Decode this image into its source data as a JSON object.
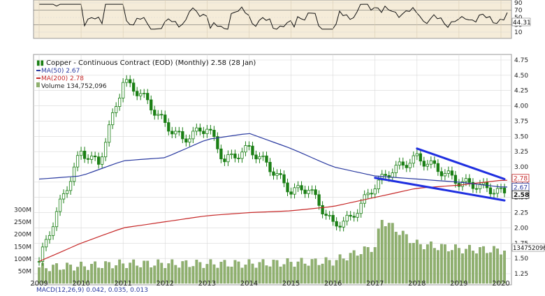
{
  "header": {
    "symbol_icon": "candlestick-icon",
    "title": "Copper - Continuous Contract (EOD) (Monthly) 2.58 (28 Jan)"
  },
  "legend": {
    "ma50": "MA(50) 2.67",
    "ma200": "MA(200) 2.78",
    "volume": "Volume 134,752,096"
  },
  "rsi_panel": {
    "y_ticks": [
      "90",
      "70",
      "50",
      "30",
      "10"
    ],
    "current_label": "44.31"
  },
  "price_axis": {
    "y_ticks": [
      "4.75",
      "4.50",
      "4.25",
      "4.00",
      "3.75",
      "3.50",
      "3.25",
      "3.00",
      "2.75",
      "2.50",
      "2.25",
      "2.00",
      "1.75",
      "1.50",
      "1.25"
    ],
    "price_labels": [
      "2.78",
      "2.67",
      "2.58"
    ],
    "volume_label": "134752096"
  },
  "volume_axis": {
    "ticks": [
      "300M",
      "250M",
      "200M",
      "150M",
      "100M",
      "50M"
    ]
  },
  "x_axis": {
    "years": [
      "2009",
      "2010",
      "2011",
      "2012",
      "2013",
      "2014",
      "2015",
      "2016",
      "2017",
      "2018",
      "2019",
      "2020"
    ]
  },
  "bottom_panel": {
    "label": "MACD(12,26,9) 0.042, 0.035, 0.013"
  },
  "colors": {
    "background": "#ffffff",
    "plot_bg": "#ffffff",
    "rsi_bg": "#f5ecd9",
    "grid": "#d8d8d8",
    "candle": "#1a7f14",
    "ma50": "#2a3aa0",
    "ma200": "#c62828",
    "volume": "#8fb06e",
    "trendline": "#1f2fe0",
    "axis_text": "#222222"
  },
  "chart_data": {
    "type": "candlestick",
    "period": "monthly",
    "price_range": [
      1.25,
      4.75
    ],
    "rsi_range": [
      10,
      90
    ],
    "volume_range_millions": [
      0,
      330
    ],
    "price_series": {
      "name": "Copper - Continuous Contract",
      "x": [
        "2009-01",
        "2009-06",
        "2010-01",
        "2010-06",
        "2011-01",
        "2011-06",
        "2012-01",
        "2012-06",
        "2013-01",
        "2013-06",
        "2014-01",
        "2014-06",
        "2015-01",
        "2015-06",
        "2016-01",
        "2016-06",
        "2017-01",
        "2017-06",
        "2018-01",
        "2018-06",
        "2019-01",
        "2019-06",
        "2020-01"
      ],
      "close": [
        1.45,
        2.25,
        3.25,
        3.05,
        4.4,
        4.2,
        3.7,
        3.45,
        3.65,
        3.1,
        3.3,
        3.05,
        2.6,
        2.65,
        2.05,
        2.15,
        2.7,
        2.95,
        3.15,
        3.0,
        2.75,
        2.7,
        2.58
      ]
    },
    "ma50": {
      "name": "MA(50)",
      "x": [
        "2009-01",
        "2010-01",
        "2011-01",
        "2012-01",
        "2013-01",
        "2014-01",
        "2015-01",
        "2016-01",
        "2017-01",
        "2018-01",
        "2019-01",
        "2020-01"
      ],
      "values": [
        2.8,
        2.85,
        3.1,
        3.15,
        3.45,
        3.55,
        3.3,
        3.0,
        2.85,
        2.8,
        2.75,
        2.67
      ]
    },
    "ma200": {
      "name": "MA(200)",
      "x": [
        "2009-01",
        "2010-01",
        "2011-01",
        "2012-01",
        "2013-01",
        "2014-01",
        "2015-01",
        "2016-01",
        "2017-01",
        "2018-01",
        "2019-01",
        "2020-01"
      ],
      "values": [
        1.45,
        1.75,
        2.0,
        2.1,
        2.2,
        2.25,
        2.28,
        2.35,
        2.5,
        2.65,
        2.7,
        2.78
      ]
    },
    "volume_millions": {
      "x": [
        "2009-01",
        "2010-01",
        "2011-01",
        "2012-01",
        "2013-01",
        "2014-01",
        "2015-01",
        "2016-01",
        "2017-01",
        "2017-03",
        "2018-01",
        "2019-01",
        "2020-01"
      ],
      "values": [
        65,
        70,
        80,
        80,
        80,
        80,
        85,
        90,
        150,
        260,
        160,
        140,
        135
      ]
    },
    "trendlines": [
      {
        "from": [
          "2018-01",
          3.3
        ],
        "to": [
          "2020-02",
          2.8
        ]
      },
      {
        "from": [
          "2017-01",
          2.82
        ],
        "to": [
          "2020-02",
          2.45
        ]
      }
    ]
  }
}
